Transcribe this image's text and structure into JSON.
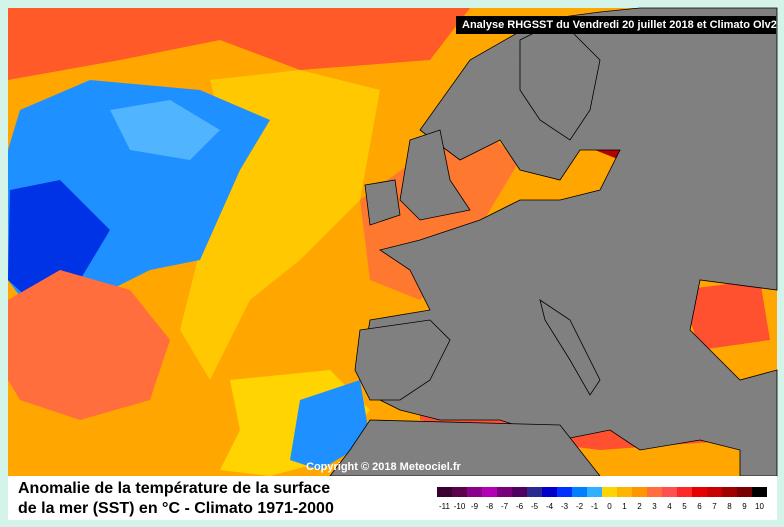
{
  "header": {
    "title": "Analyse RHGSST  du Vendredi 20 juillet 2018 et Climato Olv2"
  },
  "copyright": "Copyright © 2018 Meteociel.fr",
  "caption": [
    "Anomalie de la température de la surface",
    "de la mer (SST) en °C - Climato 1971-2000"
  ],
  "legend": {
    "labels": [
      -11,
      -10,
      -9,
      -8,
      -7,
      -6,
      -5,
      -4,
      -3,
      -2,
      -1,
      0,
      1,
      2,
      3,
      4,
      5,
      6,
      7,
      8,
      9,
      10
    ],
    "colors": [
      "#3a0030",
      "#5c004c",
      "#8a008a",
      "#b400b4",
      "#780078",
      "#500060",
      "#2a2a90",
      "#0000c8",
      "#0032ff",
      "#0080ff",
      "#30b0ff",
      "#ffd400",
      "#ffb400",
      "#ff9600",
      "#ff6e3c",
      "#ff5050",
      "#ff2828",
      "#e60000",
      "#c80000",
      "#a00000",
      "#780000",
      "#000000"
    ]
  }
}
